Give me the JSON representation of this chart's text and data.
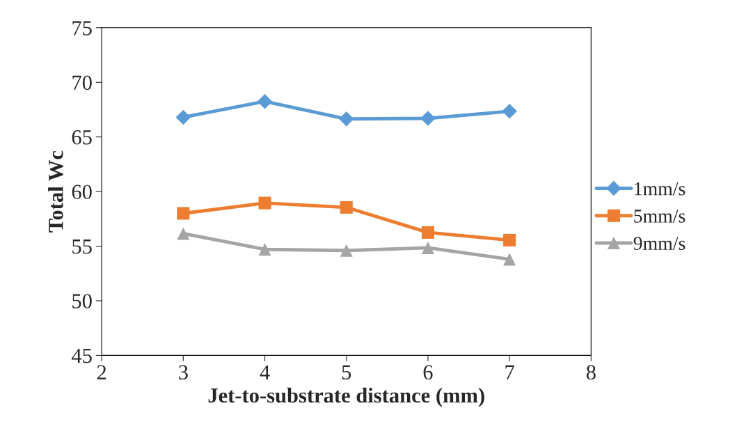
{
  "chart_data": {
    "type": "line",
    "xlabel": "Jet-to-substrate distance (mm)",
    "ylabel": "Total Wc",
    "x": [
      3,
      4,
      5,
      6,
      7
    ],
    "series": [
      {
        "name": "1mm/s",
        "color": "#5b9bd5",
        "marker": "diamond",
        "values": [
          66.8,
          68.25,
          66.65,
          66.7,
          67.35
        ]
      },
      {
        "name": "5mm/s",
        "color": "#ed7d31",
        "marker": "square",
        "values": [
          58.0,
          58.95,
          58.55,
          56.25,
          55.55
        ]
      },
      {
        "name": "9mm/s",
        "color": "#a5a5a5",
        "marker": "triangle",
        "values": [
          56.15,
          54.7,
          54.6,
          54.85,
          53.8
        ]
      }
    ],
    "xlim": [
      2,
      8
    ],
    "xticks": [
      2,
      3,
      4,
      5,
      6,
      7,
      8
    ],
    "ylim": [
      45,
      75
    ],
    "yticks": [
      45,
      50,
      55,
      60,
      65,
      70,
      75
    ],
    "grid": false,
    "legend": "right",
    "line_style": "solid"
  }
}
